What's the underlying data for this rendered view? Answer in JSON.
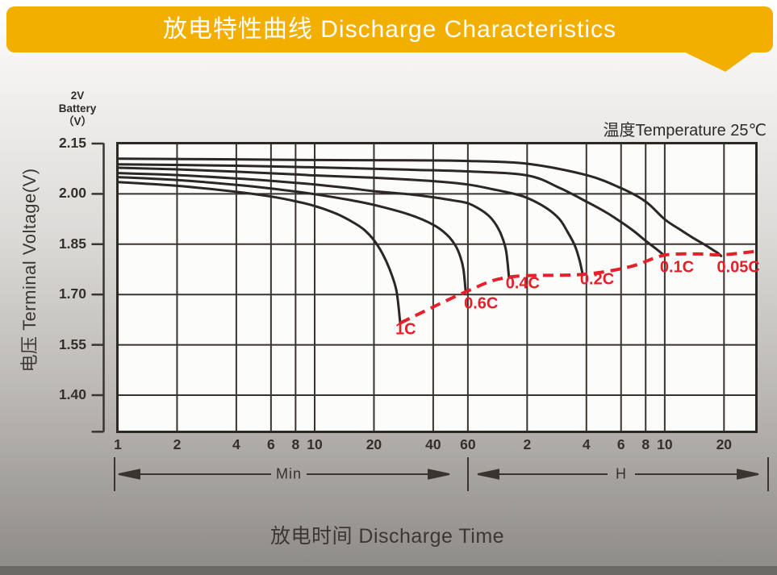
{
  "banner": {
    "title": "放电特性曲线 Discharge Characteristics",
    "background": "#F2AF00",
    "text_color": "#FFFFFF"
  },
  "corner_label": {
    "line1": "2V",
    "line2": "Battery",
    "line3": "（V）"
  },
  "temperature_note": "温度Temperature 25℃",
  "y_axis": {
    "title": "电压 Terminal Voltage(V)",
    "ticks": [
      {
        "v": 2.15,
        "text": "2.15"
      },
      {
        "v": 2.0,
        "text": "2.00"
      },
      {
        "v": 1.85,
        "text": "1.85"
      },
      {
        "v": 1.7,
        "text": "1.70"
      },
      {
        "v": 1.55,
        "text": "1.55"
      },
      {
        "v": 1.4,
        "text": "1.40"
      }
    ]
  },
  "x_axis": {
    "title": "放电时间 Discharge Time",
    "scale": "log",
    "unit_sections": [
      {
        "label": "Min"
      },
      {
        "label": "H"
      }
    ],
    "ticks": [
      {
        "t": 1,
        "text": "1"
      },
      {
        "t": 2,
        "text": "2"
      },
      {
        "t": 4,
        "text": "4"
      },
      {
        "t": 6,
        "text": "6"
      },
      {
        "t": 8,
        "text": "8"
      },
      {
        "t": 10,
        "text": "10"
      },
      {
        "t": 20,
        "text": "20"
      },
      {
        "t": 40,
        "text": "40"
      },
      {
        "t": 60,
        "text": "60"
      },
      {
        "t": 120,
        "text": "2"
      },
      {
        "t": 240,
        "text": "4"
      },
      {
        "t": 360,
        "text": "6"
      },
      {
        "t": 480,
        "text": "8"
      },
      {
        "t": 600,
        "text": "10"
      },
      {
        "t": 1200,
        "text": "20"
      }
    ]
  },
  "arrows": {
    "min_label": "Min",
    "h_label": "H"
  },
  "chart_data": {
    "type": "line",
    "title": "放电特性曲线 Discharge Characteristics",
    "xlabel": "放电时间 Discharge Time (Min then H, log scale)",
    "ylabel": "电压 Terminal Voltage(V)",
    "x_unit": "minutes",
    "xlim": [
      1,
      1760
    ],
    "ylim": [
      1.29,
      2.15
    ],
    "grid": true,
    "legend": false,
    "y_gridlines": [
      2.0,
      1.85,
      1.7,
      1.55,
      1.4
    ],
    "x_gridlines_minutes": [
      2,
      4,
      6,
      8,
      10,
      20,
      40,
      60,
      120,
      240,
      360,
      480,
      600,
      1200
    ],
    "series": [
      {
        "name": "1C",
        "points": [
          [
            1,
            2.035
          ],
          [
            2,
            2.024
          ],
          [
            4,
            2.006
          ],
          [
            6,
            1.992
          ],
          [
            8,
            1.978
          ],
          [
            10,
            1.964
          ],
          [
            13,
            1.94
          ],
          [
            16,
            1.912
          ],
          [
            18,
            1.891
          ],
          [
            20,
            1.862
          ],
          [
            22,
            1.824
          ],
          [
            24,
            1.776
          ],
          [
            26,
            1.712
          ],
          [
            27.2,
            1.615
          ]
        ]
      },
      {
        "name": "0.6C",
        "points": [
          [
            1,
            2.05
          ],
          [
            2,
            2.041
          ],
          [
            4,
            2.027
          ],
          [
            6,
            2.016
          ],
          [
            8,
            2.007
          ],
          [
            10,
            1.999
          ],
          [
            15,
            1.982
          ],
          [
            20,
            1.967
          ],
          [
            30,
            1.939
          ],
          [
            40,
            1.908
          ],
          [
            47,
            1.878
          ],
          [
            52,
            1.845
          ],
          [
            55,
            1.812
          ],
          [
            57,
            1.775
          ],
          [
            58.5,
            1.708
          ]
        ]
      },
      {
        "name": "0.4C",
        "points": [
          [
            1,
            2.062
          ],
          [
            2,
            2.056
          ],
          [
            4,
            2.046
          ],
          [
            6,
            2.039
          ],
          [
            8,
            2.033
          ],
          [
            10,
            2.028
          ],
          [
            15,
            2.017
          ],
          [
            20,
            2.008
          ],
          [
            30,
            1.999
          ],
          [
            40,
            1.99
          ],
          [
            50,
            1.981
          ],
          [
            60,
            1.972
          ],
          [
            70,
            1.952
          ],
          [
            78,
            1.93
          ],
          [
            85,
            1.9
          ],
          [
            90,
            1.868
          ],
          [
            94,
            1.828
          ],
          [
            97,
            1.752
          ]
        ]
      },
      {
        "name": "0.2C",
        "points": [
          [
            1,
            2.078
          ],
          [
            2,
            2.073
          ],
          [
            4,
            2.066
          ],
          [
            8,
            2.058
          ],
          [
            10,
            2.055
          ],
          [
            20,
            2.048
          ],
          [
            40,
            2.038
          ],
          [
            60,
            2.028
          ],
          [
            80,
            2.014
          ],
          [
            100,
            2.002
          ],
          [
            120,
            1.988
          ],
          [
            150,
            1.958
          ],
          [
            175,
            1.925
          ],
          [
            192,
            1.888
          ],
          [
            210,
            1.845
          ],
          [
            222,
            1.8
          ],
          [
            230,
            1.758
          ]
        ]
      },
      {
        "name": "0.1C",
        "points": [
          [
            1,
            2.088
          ],
          [
            4,
            2.084
          ],
          [
            10,
            2.079
          ],
          [
            30,
            2.072
          ],
          [
            60,
            2.067
          ],
          [
            120,
            2.055
          ],
          [
            175,
            2.018
          ],
          [
            240,
            1.977
          ],
          [
            300,
            1.946
          ],
          [
            360,
            1.916
          ],
          [
            420,
            1.888
          ],
          [
            480,
            1.86
          ],
          [
            540,
            1.837
          ],
          [
            595,
            1.817
          ]
        ]
      },
      {
        "name": "0.05C",
        "points": [
          [
            1,
            2.105
          ],
          [
            4,
            2.103
          ],
          [
            10,
            2.101
          ],
          [
            30,
            2.1
          ],
          [
            60,
            2.098
          ],
          [
            120,
            2.09
          ],
          [
            240,
            2.056
          ],
          [
            360,
            2.017
          ],
          [
            480,
            1.977
          ],
          [
            600,
            1.924
          ],
          [
            720,
            1.893
          ],
          [
            840,
            1.868
          ],
          [
            960,
            1.848
          ],
          [
            1060,
            1.832
          ],
          [
            1120,
            1.823
          ],
          [
            1160,
            1.815
          ]
        ]
      }
    ],
    "cutoff_curve": {
      "name": "discharge-end-line",
      "style": "dashed",
      "points": [
        [
          27.2,
          1.615
        ],
        [
          58.5,
          1.708
        ],
        [
          97,
          1.752
        ],
        [
          230,
          1.76
        ],
        [
          400,
          1.783
        ],
        [
          595,
          1.817
        ],
        [
          900,
          1.821
        ],
        [
          1160,
          1.818
        ],
        [
          1700,
          1.828
        ]
      ]
    },
    "series_labels": [
      {
        "text": "1C",
        "t": 29,
        "v": 1.594
      },
      {
        "text": "0.6C",
        "t": 70,
        "v": 1.672
      },
      {
        "text": "0.4C",
        "t": 114,
        "v": 1.732
      },
      {
        "text": "0.2C",
        "t": 272,
        "v": 1.744
      },
      {
        "text": "0.1C",
        "t": 692,
        "v": 1.78
      },
      {
        "text": "0.05C",
        "t": 1420,
        "v": 1.781
      }
    ]
  },
  "colors": {
    "banner": "#F2AF00",
    "grid": "#39342F",
    "border": "#2C2824",
    "curve": "#2B2724",
    "red": "#E5202B",
    "plot_background": "#FCFCFB",
    "bottom_strip": "#6B6966",
    "text": "#363230"
  }
}
